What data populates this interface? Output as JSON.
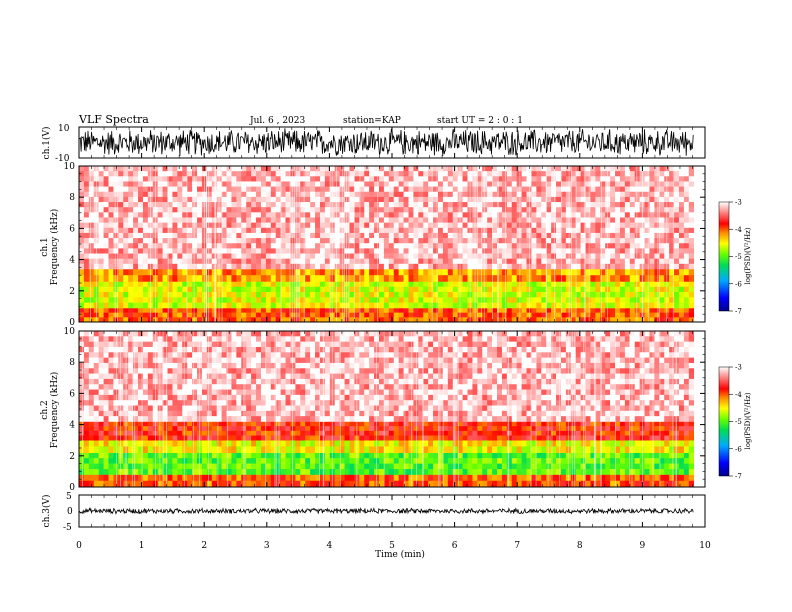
{
  "header": {
    "title": "VLF Spectra",
    "date": "Jul. 6 , 2023",
    "station": "station=KAP",
    "start": "start UT = 2 : 0 : 1"
  },
  "colors": {
    "background": "#ffffff",
    "axes": "#000000",
    "colormap": [
      "#000088",
      "#0000ff",
      "#00aaff",
      "#00dd55",
      "#66ff00",
      "#ffff00",
      "#ff8800",
      "#ff0000",
      "#ffffff"
    ]
  },
  "chart_data": [
    {
      "type": "line",
      "id": "ch1",
      "ylabel": "ch.1(V)",
      "ylim": [
        -10,
        10
      ],
      "yticks": [
        "10",
        "-10"
      ],
      "xlim": [
        0,
        10
      ],
      "description_values": {
        "baseline": 0,
        "amplitude_range": [
          -10,
          10
        ]
      }
    },
    {
      "type": "heatmap",
      "id": "ch1-spectrogram",
      "ylabel_top": "ch.1",
      "ylabel": "Frequency (kHz)",
      "ylim": [
        0,
        10
      ],
      "yticks": [
        "0",
        "2",
        "4",
        "6",
        "8",
        "10"
      ],
      "xlim": [
        0,
        10
      ],
      "colorbar": {
        "label": "log(PSD)(V²/Hz)",
        "range": [
          -7,
          -3
        ],
        "ticks": [
          "-3",
          "-4",
          "-5",
          "-6",
          "-7"
        ]
      },
      "bands": [
        {
          "freq_range_khz": [
            0,
            0.9
          ],
          "level": -4.0
        },
        {
          "freq_range_khz": [
            0.9,
            2.6
          ],
          "level": -4.6
        },
        {
          "freq_range_khz": [
            2.6,
            3.4
          ],
          "level": -4.2
        },
        {
          "freq_range_khz": [
            3.4,
            10
          ],
          "level": -3.2
        }
      ]
    },
    {
      "type": "heatmap",
      "id": "ch2-spectrogram",
      "ylabel_top": "ch.2",
      "ylabel": "Frequency (kHz)",
      "ylim": [
        0,
        10
      ],
      "yticks": [
        "0",
        "2",
        "4",
        "6",
        "8",
        "10"
      ],
      "xlim": [
        0,
        10
      ],
      "colorbar": {
        "label": "log(PSD)(V²/Hz)",
        "range": [
          -7,
          -3
        ],
        "ticks": [
          "-3",
          "-4",
          "-5",
          "-6",
          "-7"
        ]
      },
      "bands": [
        {
          "freq_range_khz": [
            0,
            0.8
          ],
          "level": -4.0
        },
        {
          "freq_range_khz": [
            0.8,
            2.2
          ],
          "level": -5.0
        },
        {
          "freq_range_khz": [
            2.2,
            3.0
          ],
          "level": -4.5
        },
        {
          "freq_range_khz": [
            3.0,
            4.2
          ],
          "level": -3.8
        },
        {
          "freq_range_khz": [
            4.2,
            10
          ],
          "level": -3.2
        }
      ]
    },
    {
      "type": "line",
      "id": "ch3",
      "ylabel": "ch.3(V)",
      "ylim": [
        -5,
        5
      ],
      "yticks": [
        "5",
        "0",
        "-5"
      ],
      "xlim": [
        0,
        10
      ],
      "description_values": {
        "baseline": 0,
        "amplitude_range": [
          -0.6,
          0.6
        ]
      }
    }
  ],
  "xaxis": {
    "label": "Time (min)",
    "ticks": [
      "0",
      "1",
      "2",
      "3",
      "4",
      "5",
      "6",
      "7",
      "8",
      "9",
      "10"
    ]
  }
}
